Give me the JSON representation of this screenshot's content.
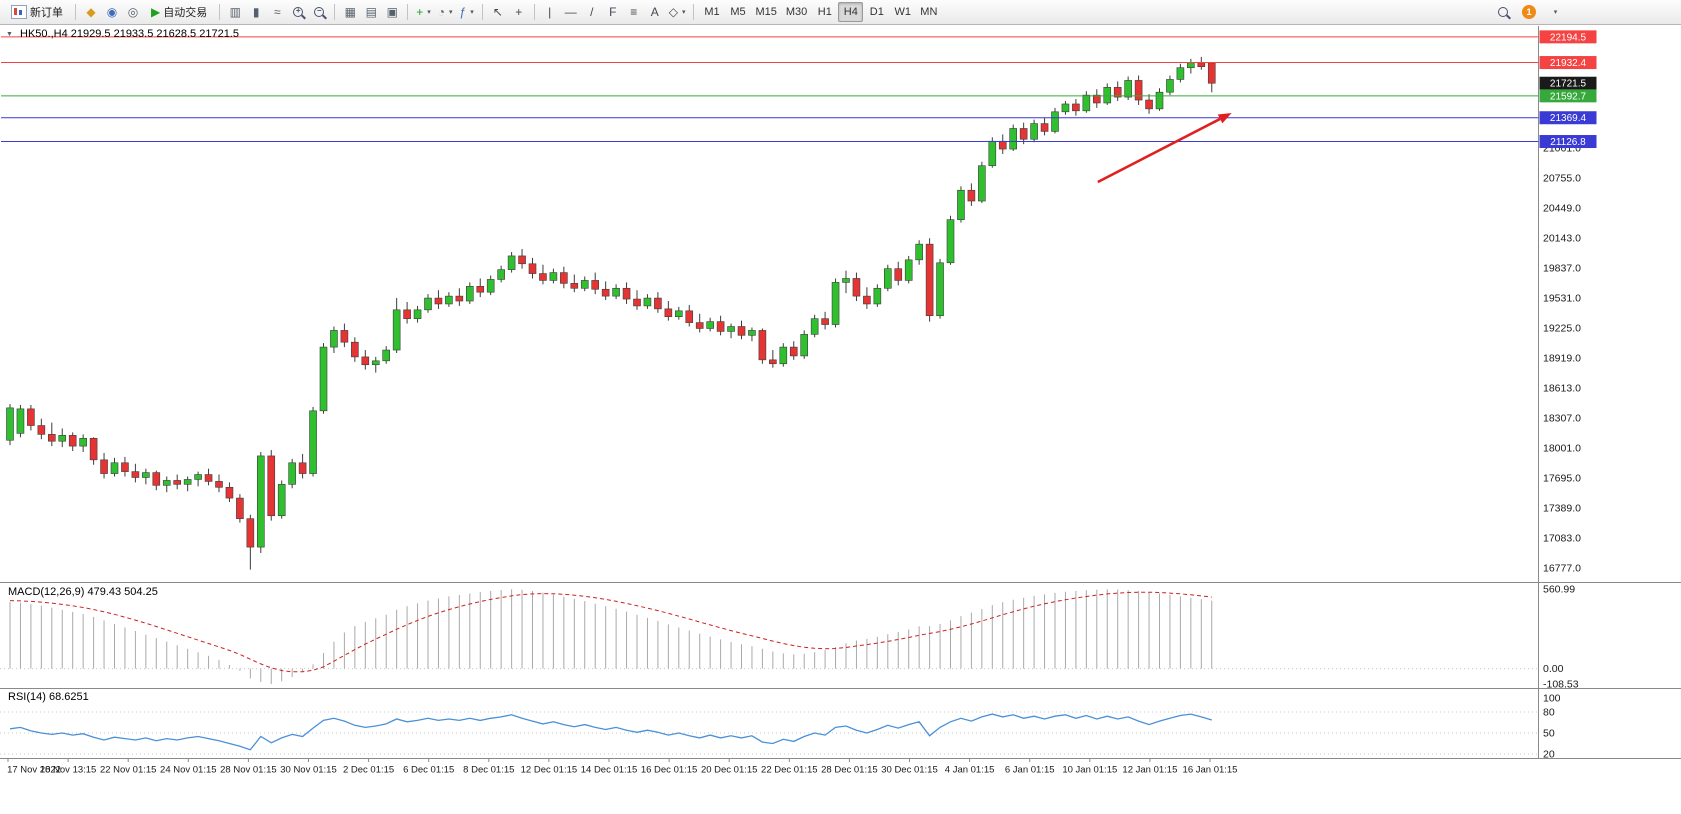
{
  "header": {
    "symbol_period": "HK50.,H4",
    "ohlc": "21929.5 21933.5 21628.5 21721.5",
    "one_click_icon": "▼"
  },
  "toolbar": {
    "new_order_label": "新订单",
    "autotrading_label": "自动交易",
    "timeframes": [
      "M1",
      "M5",
      "M15",
      "M30",
      "H1",
      "H4",
      "D1",
      "W1",
      "MN"
    ],
    "active_timeframe": "H4",
    "notification_count": "1",
    "icons": {
      "metaquotes": "◆",
      "community": "◉",
      "help": "◎",
      "autoplay": "▶",
      "bar_chart": "▥",
      "candle_chart": "▮",
      "line_chart": "≈",
      "zoom_in": "+",
      "zoom_out": "−",
      "tile_windows": "▦",
      "cascade_windows": "▤",
      "profiles": "▣",
      "new_chart_plus": "+",
      "clock": "◔",
      "indicators": "ƒ",
      "caret_down": "▾",
      "cursor": "↖",
      "crosshair": "+",
      "vertical_line": "|",
      "horizontal_line": "—",
      "trendline": "/",
      "fibonacci": "F",
      "text_tool": "≡",
      "label_tool": "A",
      "shapes": "◇"
    }
  },
  "chart_data": {
    "type": "candlestick",
    "symbol": "HK50.",
    "timeframe": "H4",
    "current_bar": {
      "open": 21929.5,
      "high": 21933.5,
      "low": 21628.5,
      "close": 21721.5
    },
    "style": {
      "up_color": "#2fbf2f",
      "down_color": "#e43434",
      "macd_color": "#a9a9a9",
      "signal_color": "#cc2222",
      "rsi_color": "#4a90d9",
      "arrow_color": "#e02020"
    },
    "y_axis_ticks": [
      21061.0,
      20755.0,
      20449.0,
      20143.0,
      19837.0,
      19531.0,
      19225.0,
      18919.0,
      18613.0,
      18307.0,
      18001.0,
      17695.0,
      17389.0,
      17083.0,
      16777.0
    ],
    "x_labels": [
      "17 Nov 2022",
      "18 Nov 13:15",
      "22 Nov 01:15",
      "24 Nov 01:15",
      "28 Nov 01:15",
      "30 Nov 01:15",
      "2 Dec 01:15",
      "6 Dec 01:15",
      "8 Dec 01:15",
      "12 Dec 01:15",
      "14 Dec 01:15",
      "16 Dec 01:15",
      "20 Dec 01:15",
      "22 Dec 01:15",
      "28 Dec 01:15",
      "30 Dec 01:15",
      "4 Jan 01:15",
      "6 Jan 01:15",
      "10 Jan 01:15",
      "12 Jan 01:15",
      "16 Jan 01:15"
    ],
    "levels": [
      {
        "price": 22194.5,
        "label": "22194.5",
        "color": "#f54242",
        "line": true
      },
      {
        "price": 21932.4,
        "label": "21932.4",
        "color": "#f54242",
        "line": true
      },
      {
        "price": 21721.5,
        "label": "21721.5",
        "color": "#1a1a1a",
        "line": false,
        "current": true
      },
      {
        "price": 21592.7,
        "label": "21592.7",
        "color": "#37a93c",
        "line": true
      },
      {
        "price": 21369.4,
        "label": "21369.4",
        "color": "#3a3ad4",
        "line": true
      },
      {
        "price": 21126.8,
        "label": "21126.8",
        "color": "#3a3ad4",
        "line": true
      }
    ],
    "arrow_annotation": {
      "from_bar": 104.1,
      "from_price": 20714,
      "to_bar": 116.9,
      "to_price": 21418,
      "color": "#e02020"
    },
    "candles": [
      [
        18080,
        18450,
        18030,
        18410
      ],
      [
        18150,
        18440,
        18110,
        18400
      ],
      [
        18400,
        18440,
        18180,
        18230
      ],
      [
        18230,
        18300,
        18090,
        18140
      ],
      [
        18140,
        18260,
        18020,
        18070
      ],
      [
        18070,
        18200,
        18010,
        18130
      ],
      [
        18130,
        18160,
        17970,
        18020
      ],
      [
        18020,
        18140,
        17960,
        18100
      ],
      [
        18100,
        18110,
        17830,
        17880
      ],
      [
        17880,
        17950,
        17690,
        17740
      ],
      [
        17740,
        17900,
        17710,
        17850
      ],
      [
        17850,
        17910,
        17710,
        17760
      ],
      [
        17760,
        17840,
        17650,
        17700
      ],
      [
        17700,
        17790,
        17630,
        17750
      ],
      [
        17750,
        17770,
        17570,
        17620
      ],
      [
        17620,
        17710,
        17550,
        17670
      ],
      [
        17670,
        17730,
        17580,
        17630
      ],
      [
        17630,
        17710,
        17560,
        17680
      ],
      [
        17680,
        17760,
        17610,
        17730
      ],
      [
        17730,
        17790,
        17620,
        17660
      ],
      [
        17660,
        17730,
        17550,
        17600
      ],
      [
        17600,
        17650,
        17450,
        17490
      ],
      [
        17490,
        17530,
        17240,
        17280
      ],
      [
        17280,
        17320,
        16760,
        16990
      ],
      [
        16990,
        17960,
        16930,
        17920
      ],
      [
        17920,
        17980,
        17260,
        17310
      ],
      [
        17310,
        17670,
        17280,
        17630
      ],
      [
        17630,
        17890,
        17590,
        17850
      ],
      [
        17850,
        17940,
        17690,
        17740
      ],
      [
        17740,
        18420,
        17710,
        18380
      ],
      [
        18380,
        19070,
        18350,
        19030
      ],
      [
        19030,
        19240,
        18970,
        19200
      ],
      [
        19200,
        19270,
        19030,
        19080
      ],
      [
        19080,
        19130,
        18880,
        18930
      ],
      [
        18930,
        19000,
        18800,
        18850
      ],
      [
        18850,
        18930,
        18770,
        18890
      ],
      [
        18890,
        19040,
        18860,
        19000
      ],
      [
        19000,
        19530,
        18970,
        19410
      ],
      [
        19410,
        19490,
        19270,
        19320
      ],
      [
        19320,
        19450,
        19280,
        19410
      ],
      [
        19410,
        19570,
        19380,
        19530
      ],
      [
        19530,
        19610,
        19420,
        19470
      ],
      [
        19470,
        19590,
        19440,
        19550
      ],
      [
        19550,
        19630,
        19450,
        19500
      ],
      [
        19500,
        19690,
        19470,
        19650
      ],
      [
        19650,
        19730,
        19540,
        19590
      ],
      [
        19590,
        19760,
        19560,
        19720
      ],
      [
        19720,
        19860,
        19690,
        19820
      ],
      [
        19820,
        20000,
        19790,
        19960
      ],
      [
        19960,
        20030,
        19830,
        19880
      ],
      [
        19880,
        19940,
        19730,
        19780
      ],
      [
        19780,
        19870,
        19670,
        19710
      ],
      [
        19710,
        19830,
        19680,
        19790
      ],
      [
        19790,
        19850,
        19630,
        19680
      ],
      [
        19680,
        19770,
        19590,
        19630
      ],
      [
        19630,
        19750,
        19600,
        19710
      ],
      [
        19710,
        19790,
        19570,
        19620
      ],
      [
        19620,
        19700,
        19510,
        19550
      ],
      [
        19550,
        19670,
        19520,
        19630
      ],
      [
        19630,
        19690,
        19470,
        19520
      ],
      [
        19520,
        19610,
        19410,
        19450
      ],
      [
        19450,
        19570,
        19420,
        19530
      ],
      [
        19530,
        19590,
        19380,
        19420
      ],
      [
        19420,
        19500,
        19300,
        19340
      ],
      [
        19340,
        19440,
        19310,
        19400
      ],
      [
        19400,
        19460,
        19240,
        19280
      ],
      [
        19280,
        19370,
        19180,
        19220
      ],
      [
        19220,
        19330,
        19190,
        19290
      ],
      [
        19290,
        19350,
        19150,
        19190
      ],
      [
        19190,
        19270,
        19120,
        19240
      ],
      [
        19240,
        19300,
        19110,
        19150
      ],
      [
        19150,
        19230,
        19090,
        19200
      ],
      [
        19200,
        19220,
        18860,
        18900
      ],
      [
        18900,
        19000,
        18820,
        18860
      ],
      [
        18860,
        19070,
        18830,
        19030
      ],
      [
        19030,
        19090,
        18900,
        18940
      ],
      [
        18940,
        19200,
        18910,
        19160
      ],
      [
        19160,
        19360,
        19130,
        19320
      ],
      [
        19320,
        19390,
        19210,
        19260
      ],
      [
        19260,
        19730,
        19230,
        19690
      ],
      [
        19690,
        19810,
        19580,
        19730
      ],
      [
        19730,
        19790,
        19500,
        19550
      ],
      [
        19550,
        19640,
        19420,
        19470
      ],
      [
        19470,
        19670,
        19440,
        19630
      ],
      [
        19630,
        19870,
        19600,
        19830
      ],
      [
        19830,
        19900,
        19660,
        19710
      ],
      [
        19710,
        19960,
        19680,
        19920
      ],
      [
        19920,
        20120,
        19870,
        20080
      ],
      [
        20080,
        20140,
        19290,
        19350
      ],
      [
        19350,
        19930,
        19320,
        19890
      ],
      [
        19890,
        20370,
        19870,
        20330
      ],
      [
        20330,
        20670,
        20300,
        20630
      ],
      [
        20630,
        20700,
        20470,
        20520
      ],
      [
        20520,
        20920,
        20500,
        20880
      ],
      [
        20880,
        21170,
        20860,
        21130
      ],
      [
        21130,
        21200,
        21000,
        21050
      ],
      [
        21050,
        21300,
        21030,
        21260
      ],
      [
        21260,
        21320,
        21100,
        21150
      ],
      [
        21150,
        21350,
        21120,
        21310
      ],
      [
        21310,
        21370,
        21190,
        21230
      ],
      [
        21230,
        21470,
        21210,
        21430
      ],
      [
        21430,
        21540,
        21400,
        21510
      ],
      [
        21510,
        21560,
        21390,
        21440
      ],
      [
        21440,
        21640,
        21420,
        21600
      ],
      [
        21600,
        21660,
        21470,
        21520
      ],
      [
        21520,
        21720,
        21500,
        21680
      ],
      [
        21680,
        21740,
        21540,
        21580
      ],
      [
        21580,
        21790,
        21550,
        21750
      ],
      [
        21750,
        21800,
        21500,
        21550
      ],
      [
        21550,
        21610,
        21410,
        21460
      ],
      [
        21460,
        21670,
        21440,
        21630
      ],
      [
        21630,
        21800,
        21600,
        21760
      ],
      [
        21760,
        21920,
        21730,
        21880
      ],
      [
        21880,
        21970,
        21820,
        21930
      ],
      [
        21930,
        21990,
        21860,
        21890
      ],
      [
        21929.5,
        21933.5,
        21628.5,
        21721.5
      ]
    ],
    "indicators": {
      "macd": {
        "label": "MACD(12,26,9) 479.43 504.25",
        "params": [
          12,
          26,
          9
        ],
        "main_value": 479.43,
        "signal_value": 504.25,
        "axis_labels": [
          "560.99",
          "0.00",
          "-108.53"
        ],
        "histogram": [
          470,
          465,
          455,
          445,
          430,
          415,
          400,
          385,
          365,
          340,
          315,
          290,
          265,
          240,
          215,
          190,
          165,
          140,
          115,
          90,
          60,
          25,
          -15,
          -70,
          -95,
          -108,
          -90,
          -60,
          -25,
          30,
          110,
          190,
          255,
          300,
          330,
          355,
          380,
          415,
          440,
          460,
          480,
          495,
          510,
          520,
          530,
          540,
          548,
          554,
          560,
          556,
          548,
          536,
          522,
          508,
          492,
          476,
          458,
          440,
          422,
          402,
          380,
          358,
          336,
          312,
          290,
          268,
          246,
          226,
          206,
          188,
          172,
          158,
          140,
          120,
          108,
          100,
          104,
          116,
          130,
          152,
          178,
          198,
          210,
          224,
          242,
          258,
          276,
          298,
          300,
          315,
          340,
          370,
          395,
          420,
          448,
          468,
          486,
          500,
          514,
          524,
          534,
          542,
          548,
          553,
          557,
          560,
          558,
          554,
          548,
          540,
          530,
          520,
          510,
          500,
          490,
          479.43
        ],
        "signal": [
          480,
          478,
          474,
          469,
          462,
          453,
          443,
          431,
          417,
          401,
          383,
          363,
          342,
          320,
          297,
          273,
          249,
          225,
          201,
          177,
          153,
          128,
          100,
          66,
          33,
          5,
          -14,
          -23,
          -23,
          -12,
          12,
          52,
          93,
          134,
          173,
          209,
          243,
          277,
          310,
          340,
          368,
          393,
          416,
          437,
          456,
          473,
          488,
          501,
          513,
          522,
          527,
          529,
          528,
          524,
          518,
          510,
          500,
          488,
          475,
          460,
          444,
          427,
          409,
          390,
          370,
          350,
          329,
          308,
          288,
          268,
          249,
          231,
          213,
          194,
          177,
          162,
          150,
          143,
          140,
          142,
          149,
          159,
          169,
          180,
          192,
          205,
          219,
          235,
          248,
          261,
          277,
          295,
          315,
          336,
          358,
          380,
          401,
          421,
          440,
          457,
          472,
          486,
          498,
          509,
          519,
          527,
          533,
          537,
          539,
          539,
          537,
          533,
          528,
          521,
          513,
          504.25
        ]
      },
      "rsi": {
        "label": "RSI(14) 68.6251",
        "period": 14,
        "value": 68.6251,
        "axis_labels": [
          "100",
          "80",
          "50",
          "20"
        ],
        "levels": [
          80,
          50,
          20
        ],
        "series": [
          56,
          58,
          53,
          50,
          48,
          50,
          47,
          49,
          44,
          40,
          44,
          42,
          40,
          43,
          39,
          42,
          40,
          43,
          45,
          42,
          39,
          35,
          31,
          26,
          45,
          36,
          43,
          48,
          45,
          57,
          68,
          71,
          67,
          61,
          58,
          60,
          63,
          70,
          66,
          68,
          71,
          68,
          70,
          68,
          71,
          68,
          71,
          73,
          76,
          71,
          67,
          63,
          66,
          62,
          59,
          62,
          58,
          55,
          58,
          54,
          51,
          54,
          51,
          47,
          50,
          46,
          43,
          47,
          43,
          46,
          43,
          46,
          37,
          35,
          41,
          38,
          45,
          50,
          47,
          58,
          60,
          54,
          50,
          55,
          61,
          57,
          62,
          66,
          46,
          58,
          66,
          71,
          67,
          73,
          77,
          73,
          76,
          71,
          74,
          70,
          74,
          76,
          71,
          75,
          70,
          74,
          70,
          73,
          67,
          62,
          67,
          71,
          75,
          77,
          73,
          68.6251
        ]
      }
    }
  }
}
